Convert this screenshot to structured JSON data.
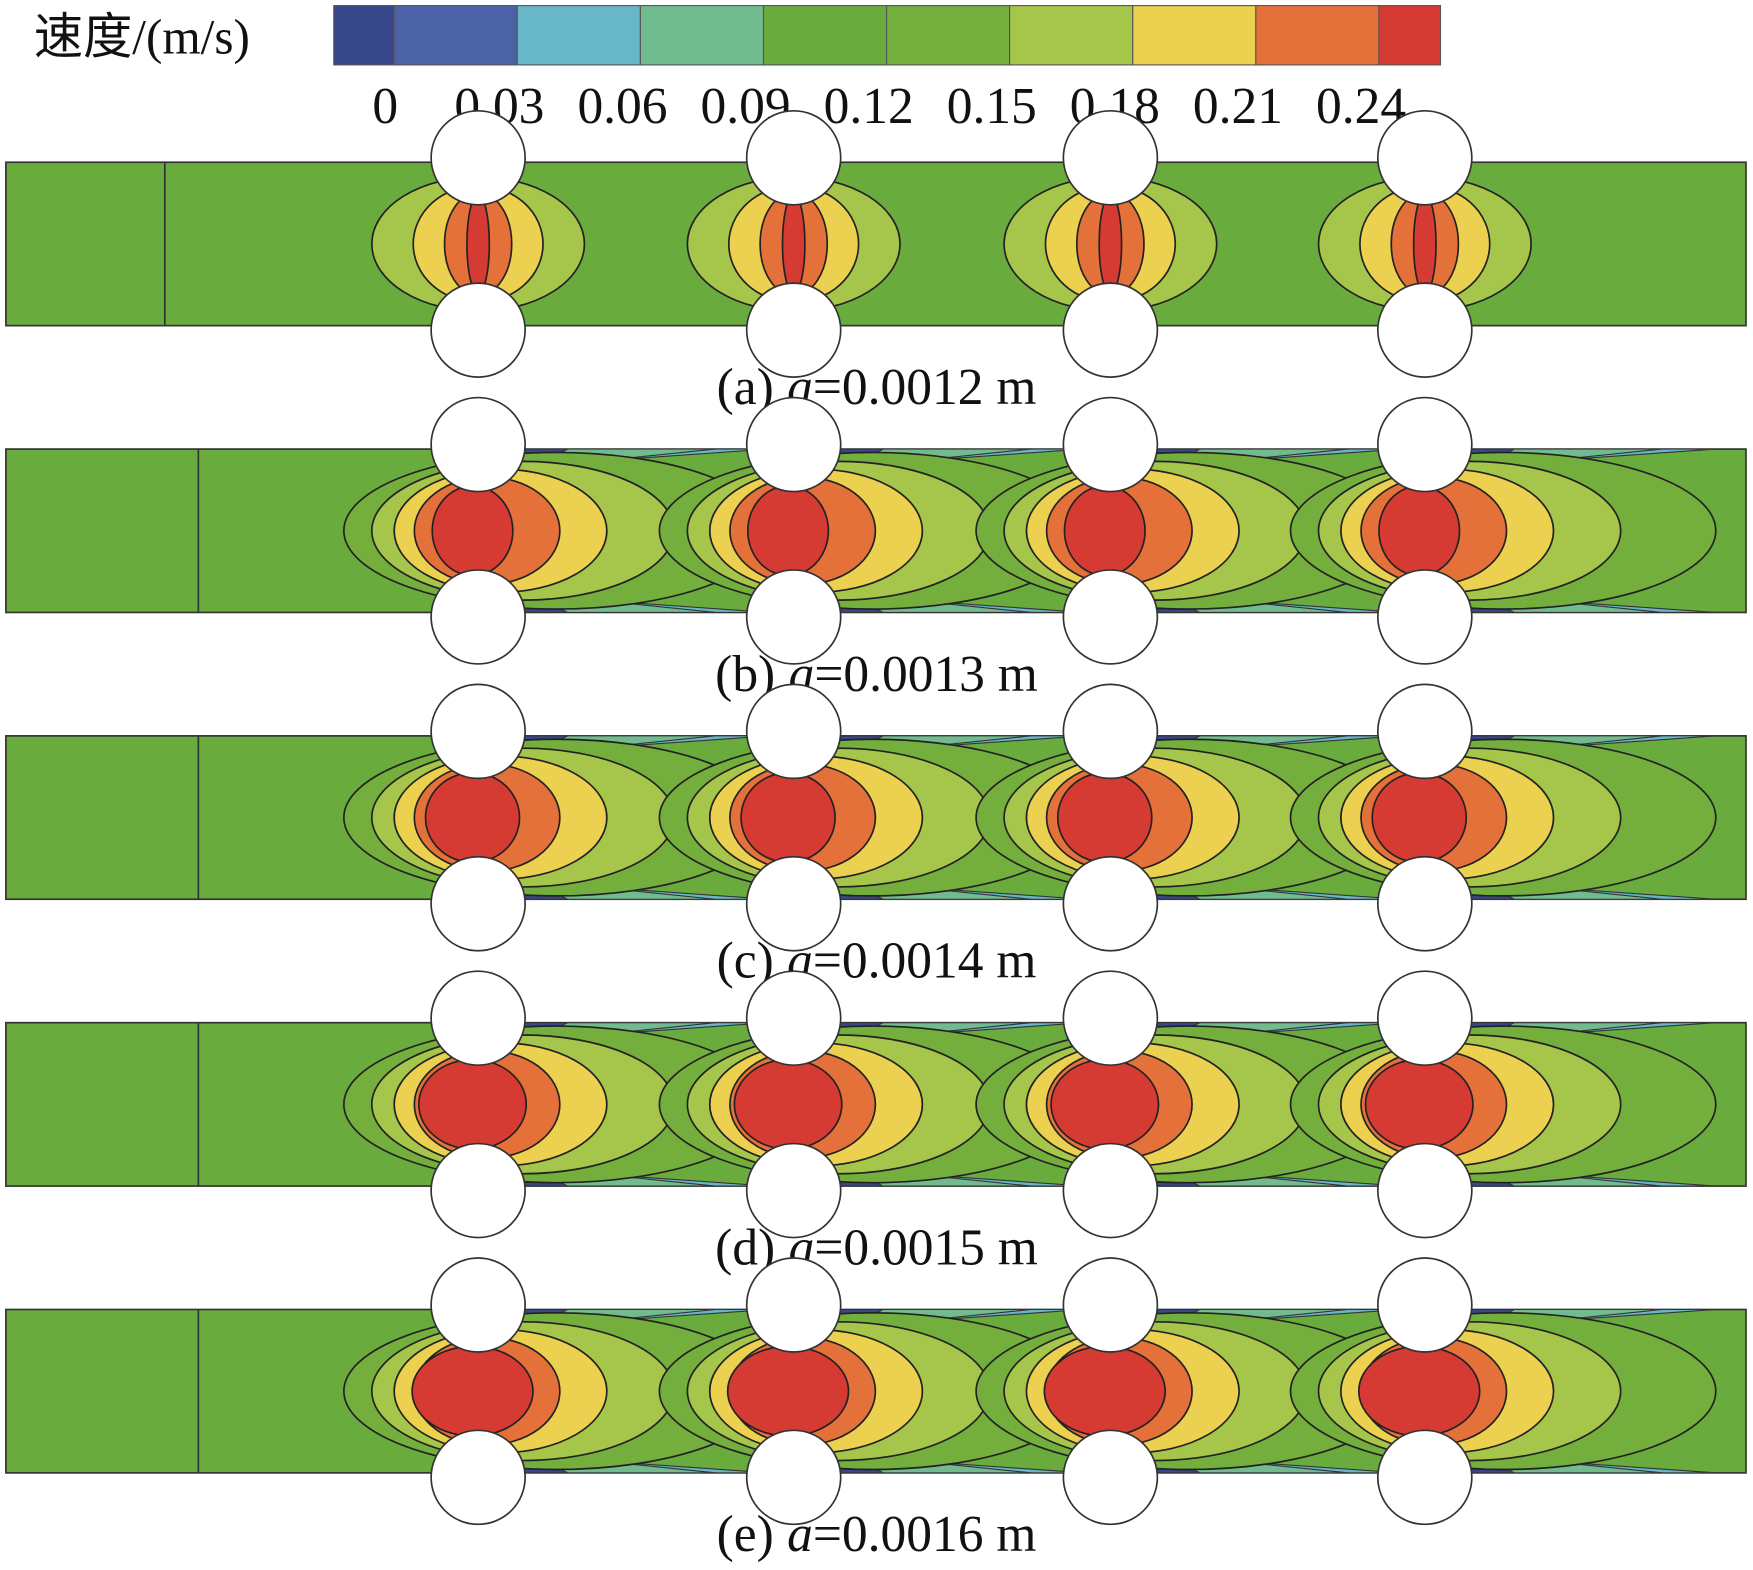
{
  "legend": {
    "title": "速度/(m/s)",
    "ticks": [
      0,
      0.03,
      0.06,
      0.09,
      0.12,
      0.15,
      0.18,
      0.21,
      0.24
    ],
    "colors": [
      "#38468a",
      "#4b63a6",
      "#68b7c8",
      "#72bb8f",
      "#6aab3e",
      "#74ae3d",
      "#a5c54b",
      "#ecd04f",
      "#e4703a",
      "#d63b33"
    ]
  },
  "panels": [
    {
      "caption": {
        "tag": "(a)",
        "symbol": "a",
        "rest": "=0.0012 m"
      }
    },
    {
      "caption": {
        "tag": "(b)",
        "symbol": "a",
        "rest": "=0.0013 m"
      }
    },
    {
      "caption": {
        "tag": "(c)",
        "symbol": "a",
        "rest": "=0.0014 m"
      }
    },
    {
      "caption": {
        "tag": "(d)",
        "symbol": "a",
        "rest": "=0.0015 m"
      }
    },
    {
      "caption": {
        "tag": "(e)",
        "symbol": "a",
        "rest": "=0.0016 m"
      }
    }
  ]
}
